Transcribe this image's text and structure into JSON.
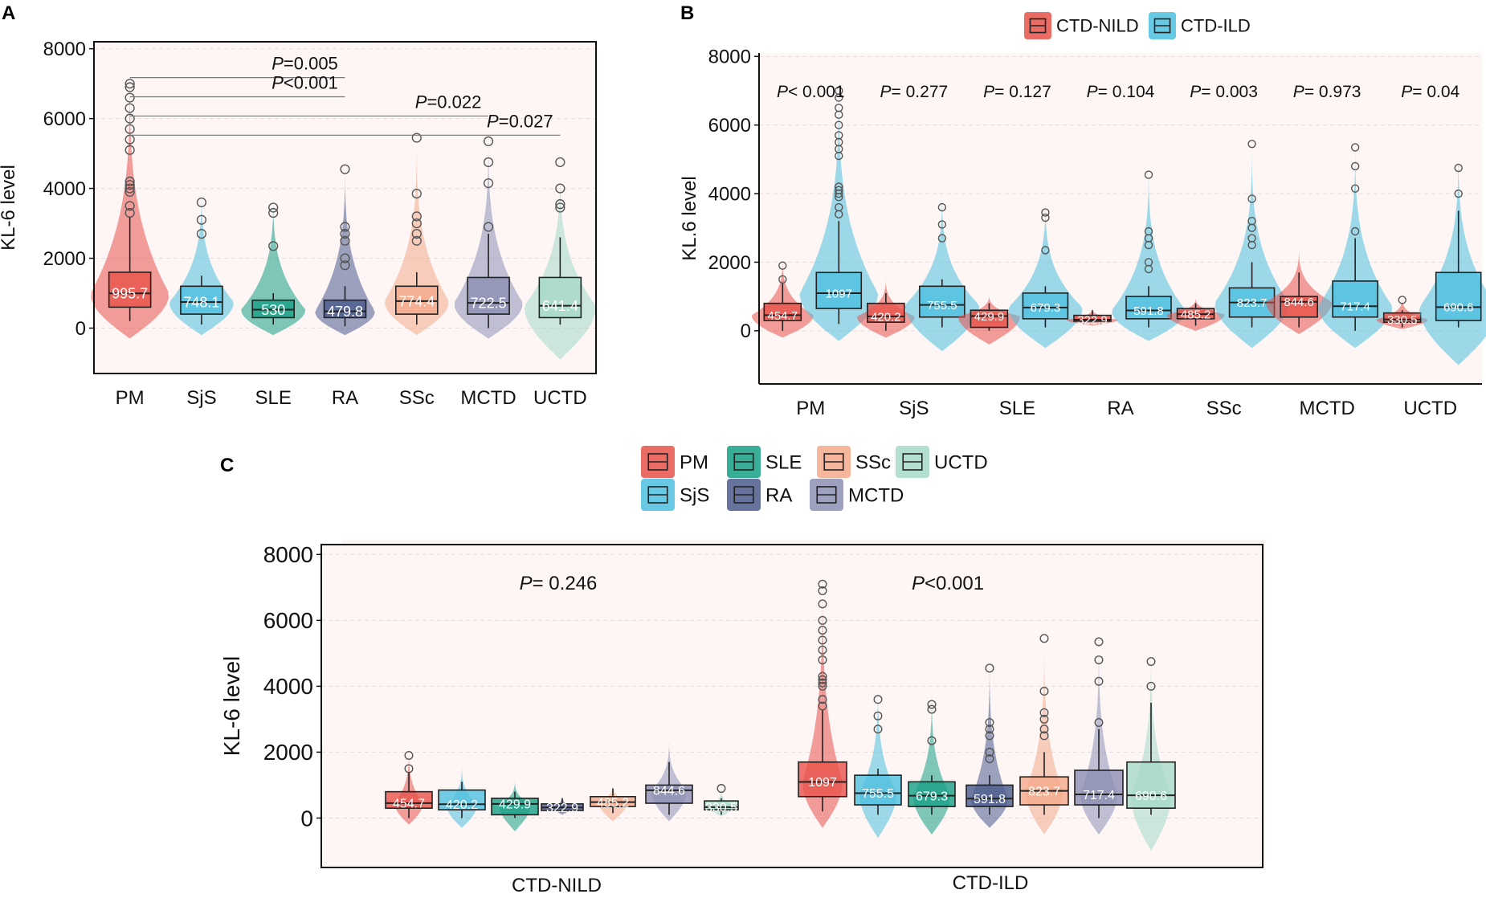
{
  "colors": {
    "PM": "#e8524a",
    "SjS": "#4ec0df",
    "SLE": "#16a085",
    "RA": "#4a5a8c",
    "SSc": "#f4a98a",
    "MCTD": "#8c8fb4",
    "UCTD": "#a6d9c8",
    "CTD-NILD": "#e8524a",
    "CTD-ILD": "#4ec0df"
  },
  "chart_data": [
    {
      "panel": "A",
      "type": "box",
      "ylabel": "KL-6 level",
      "ylim": [
        -1300,
        8200
      ],
      "yticks": [
        0,
        2000,
        4000,
        6000,
        8000
      ],
      "categories": [
        "PM",
        "SjS",
        "SLE",
        "RA",
        "SSc",
        "MCTD",
        "UCTD"
      ],
      "groups": [
        {
          "name": "PM",
          "color_key": "PM",
          "q1": 600,
          "median": 995.7,
          "q3": 1600,
          "whislo": 200,
          "whishi": 3200,
          "vmin": -300,
          "vmax": 7500,
          "vw": 0.55,
          "label": "995.7",
          "outliers": [
            7000,
            6900,
            6600,
            6300,
            6000,
            5700,
            5400,
            5100,
            4200,
            4100,
            4000,
            3900,
            3500,
            3300
          ]
        },
        {
          "name": "SjS",
          "color_key": "SjS",
          "q1": 400,
          "median": 748.1,
          "q3": 1200,
          "whislo": 100,
          "whishi": 1500,
          "vmin": -200,
          "vmax": 4200,
          "vw": 0.45,
          "label": "748.1",
          "outliers": [
            3600,
            3100,
            2700
          ]
        },
        {
          "name": "SLE",
          "color_key": "SLE",
          "q1": 300,
          "median": 530,
          "q3": 800,
          "whislo": 100,
          "whishi": 1000,
          "vmin": -200,
          "vmax": 4000,
          "vw": 0.45,
          "label": "530",
          "outliers": [
            3450,
            3300,
            2350
          ]
        },
        {
          "name": "RA",
          "color_key": "RA",
          "q1": 300,
          "median": 479.8,
          "q3": 800,
          "whislo": 50,
          "whishi": 1200,
          "vmin": -200,
          "vmax": 4900,
          "vw": 0.42,
          "label": "479.8",
          "outliers": [
            4550,
            2900,
            2700,
            2500,
            2000,
            1800
          ]
        },
        {
          "name": "SSc",
          "color_key": "SSc",
          "q1": 400,
          "median": 774.4,
          "q3": 1200,
          "whislo": 100,
          "whishi": 1600,
          "vmin": -200,
          "vmax": 5600,
          "vw": 0.45,
          "label": "774.4",
          "outliers": [
            5450,
            3850,
            3200,
            3000,
            2700,
            2500
          ]
        },
        {
          "name": "MCTD",
          "color_key": "MCTD",
          "q1": 400,
          "median": 722.5,
          "q3": 1450,
          "whislo": 0,
          "whishi": 2700,
          "vmin": -300,
          "vmax": 5700,
          "vw": 0.48,
          "label": "722.5",
          "outliers": [
            5350,
            4750,
            4150,
            2900
          ]
        },
        {
          "name": "UCTD",
          "color_key": "UCTD",
          "q1": 300,
          "median": 641.4,
          "q3": 1450,
          "whislo": 100,
          "whishi": 2600,
          "vmin": -900,
          "vmax": 4900,
          "vw": 0.5,
          "label": "641.4",
          "outliers": [
            4750,
            4000,
            3550,
            3450
          ]
        }
      ],
      "comparisons": [
        {
          "label": "=0.005",
          "from": "PM",
          "to": "RA",
          "y": 7450
        },
        {
          "label": "<0.001",
          "from": "PM",
          "to": "RA",
          "y": 6900
        },
        {
          "label": "=0.022",
          "from": "PM",
          "to": "MCTD",
          "y": 6350
        },
        {
          "label": "=0.027",
          "from": "PM",
          "to": "UCTD",
          "y": 5800
        }
      ]
    },
    {
      "panel": "B",
      "type": "box",
      "ylabel": "KL.6 level",
      "ylim": [
        -1550,
        8100
      ],
      "yticks": [
        0,
        2000,
        4000,
        6000,
        8000
      ],
      "legend": [
        "CTD-NILD",
        "CTD-ILD"
      ],
      "categories": [
        "PM",
        "SjS",
        "SLE",
        "RA",
        "SSc",
        "MCTD",
        "UCTD"
      ],
      "pvalues": [
        "< 0.001",
        "= 0.277",
        "= 0.127",
        "= 0.104",
        "= 0.003",
        "= 0.973",
        "= 0.04"
      ],
      "series": [
        {
          "name": "CTD-NILD",
          "color_key": "CTD-NILD",
          "groups": [
            {
              "q1": 300,
              "median": 454.7,
              "q3": 800,
              "whislo": 0,
              "whishi": 1400,
              "vmin": -200,
              "vmax": 2200,
              "vw": 0.3,
              "label": "454.7",
              "outliers": [
                1900,
                1500
              ]
            },
            {
              "q1": 250,
              "median": 420.2,
              "q3": 800,
              "whislo": 0,
              "whishi": 1100,
              "vmin": -200,
              "vmax": 1600,
              "vw": 0.28,
              "label": "420.2",
              "outliers": []
            },
            {
              "q1": 100,
              "median": 429.9,
              "q3": 600,
              "whislo": 0,
              "whishi": 800,
              "vmin": -400,
              "vmax": 1100,
              "vw": 0.3,
              "label": "429.9",
              "outliers": []
            },
            {
              "q1": 280,
              "median": 322.9,
              "q3": 450,
              "whislo": 200,
              "whishi": 600,
              "vmin": 150,
              "vmax": 700,
              "vw": 0.25,
              "label": "322.9",
              "outliers": []
            },
            {
              "q1": 350,
              "median": 485.2,
              "q3": 650,
              "whislo": 150,
              "whishi": 800,
              "vmin": 0,
              "vmax": 1000,
              "vw": 0.28,
              "label": "485.2",
              "outliers": []
            },
            {
              "q1": 400,
              "median": 844.6,
              "q3": 1000,
              "whislo": 100,
              "whishi": 1700,
              "vmin": -100,
              "vmax": 2500,
              "vw": 0.32,
              "label": "844.6",
              "outliers": []
            },
            {
              "q1": 250,
              "median": 330.5,
              "q3": 520,
              "whislo": 100,
              "whishi": 600,
              "vmin": 50,
              "vmax": 1000,
              "vw": 0.25,
              "label": "330.5",
              "outliers": [
                900
              ]
            }
          ]
        },
        {
          "name": "CTD-ILD",
          "color_key": "CTD-ILD",
          "groups": [
            {
              "q1": 650,
              "median": 1097,
              "q3": 1700,
              "whislo": 200,
              "whishi": 3200,
              "vmin": -300,
              "vmax": 7500,
              "vw": 0.38,
              "label": "1097",
              "outliers": [
                7000,
                6800,
                6500,
                6300,
                6000,
                5700,
                5500,
                5300,
                5100,
                4200,
                4100,
                4000,
                3900,
                3600,
                3400
              ]
            },
            {
              "q1": 400,
              "median": 755.5,
              "q3": 1300,
              "whislo": 100,
              "whishi": 1500,
              "vmin": -600,
              "vmax": 4200,
              "vw": 0.36,
              "label": "755.5",
              "outliers": [
                3600,
                3100,
                2700
              ]
            },
            {
              "q1": 350,
              "median": 679.3,
              "q3": 1100,
              "whislo": 100,
              "whishi": 1300,
              "vmin": -500,
              "vmax": 4000,
              "vw": 0.36,
              "label": "679.3",
              "outliers": [
                3450,
                3300,
                2350
              ]
            },
            {
              "q1": 350,
              "median": 591.8,
              "q3": 1000,
              "whislo": 100,
              "whishi": 1300,
              "vmin": -300,
              "vmax": 5000,
              "vw": 0.36,
              "label": "591.8",
              "outliers": [
                4550,
                2900,
                2700,
                2500,
                2000,
                1800
              ]
            },
            {
              "q1": 400,
              "median": 823.7,
              "q3": 1250,
              "whislo": 100,
              "whishi": 2000,
              "vmin": -500,
              "vmax": 5600,
              "vw": 0.36,
              "label": "823.7",
              "outliers": [
                5450,
                3850,
                3200,
                3000,
                2700,
                2500
              ]
            },
            {
              "q1": 400,
              "median": 717.4,
              "q3": 1450,
              "whislo": 0,
              "whishi": 2700,
              "vmin": -500,
              "vmax": 5700,
              "vw": 0.36,
              "label": "717.4",
              "outliers": [
                5350,
                4800,
                4150,
                2900
              ]
            },
            {
              "q1": 300,
              "median": 690.6,
              "q3": 1700,
              "whislo": 100,
              "whishi": 3500,
              "vmin": -1000,
              "vmax": 5500,
              "vw": 0.38,
              "label": "690.6",
              "outliers": [
                4750,
                4000
              ]
            }
          ]
        }
      ]
    },
    {
      "panel": "C",
      "type": "box",
      "ylabel": "KL-6 level",
      "ylim": [
        -1500,
        8300
      ],
      "yticks": [
        0,
        2000,
        4000,
        6000,
        8000
      ],
      "legend": [
        "PM",
        "SLE",
        "SSc",
        "UCTD",
        "SjS",
        "RA",
        "MCTD"
      ],
      "categories": [
        "CTD-NILD",
        "CTD-ILD"
      ],
      "pvalues": [
        "= 0.246",
        "<0.001"
      ],
      "subgroups": [
        "PM",
        "SjS",
        "SLE",
        "RA",
        "SSc",
        "MCTD",
        "UCTD"
      ],
      "groups": [
        [
          {
            "q1": 300,
            "median": 454.7,
            "q3": 800,
            "whislo": 0,
            "whishi": 1400,
            "vmin": -200,
            "vmax": 2200,
            "vw": 0.55,
            "label": "454.7",
            "outliers": [
              1900,
              1500
            ]
          },
          {
            "q1": 250,
            "median": 420.2,
            "q3": 850,
            "whislo": 0,
            "whishi": 1100,
            "vmin": -300,
            "vmax": 1700,
            "vw": 0.6,
            "label": "420.2",
            "outliers": []
          },
          {
            "q1": 100,
            "median": 429.9,
            "q3": 600,
            "whislo": 0,
            "whishi": 800,
            "vmin": -400,
            "vmax": 1200,
            "vw": 0.62,
            "label": "429.9",
            "outliers": []
          },
          {
            "q1": 230,
            "median": 322.9,
            "q3": 430,
            "whislo": 180,
            "whishi": 600,
            "vmin": 100,
            "vmax": 750,
            "vw": 0.35,
            "label": "322.9",
            "outliers": []
          },
          {
            "q1": 350,
            "median": 485.2,
            "q3": 650,
            "whislo": 150,
            "whishi": 900,
            "vmin": -100,
            "vmax": 1100,
            "vw": 0.55,
            "label": "485.2",
            "outliers": []
          },
          {
            "q1": 450,
            "median": 844.6,
            "q3": 1000,
            "whislo": 100,
            "whishi": 1700,
            "vmin": -100,
            "vmax": 2500,
            "vw": 0.7,
            "label": "844.6",
            "outliers": []
          },
          {
            "q1": 250,
            "median": 330.5,
            "q3": 520,
            "whislo": 100,
            "whishi": 600,
            "vmin": 50,
            "vmax": 1000,
            "vw": 0.45,
            "label": "330.5",
            "outliers": [
              900
            ]
          }
        ],
        [
          {
            "q1": 650,
            "median": 1097,
            "q3": 1700,
            "whislo": 200,
            "whishi": 3300,
            "vmin": -300,
            "vmax": 7500,
            "vw": 0.78,
            "label": "1097",
            "outliers": [
              7100,
              6900,
              6500,
              6000,
              5700,
              5400,
              5100,
              4800,
              4300,
              4200,
              4100,
              4000,
              3600,
              3400
            ]
          },
          {
            "q1": 400,
            "median": 755.5,
            "q3": 1300,
            "whislo": 100,
            "whishi": 1500,
            "vmin": -600,
            "vmax": 4300,
            "vw": 0.72,
            "label": "755.5",
            "outliers": [
              3600,
              3100,
              2700
            ]
          },
          {
            "q1": 350,
            "median": 679.3,
            "q3": 1100,
            "whislo": 100,
            "whishi": 1300,
            "vmin": -500,
            "vmax": 4000,
            "vw": 0.72,
            "label": "679.3",
            "outliers": [
              3450,
              3300,
              2350
            ]
          },
          {
            "q1": 350,
            "median": 591.8,
            "q3": 1000,
            "whislo": 100,
            "whishi": 1300,
            "vmin": -300,
            "vmax": 5000,
            "vw": 0.72,
            "label": "591.8",
            "outliers": [
              4550,
              2900,
              2700,
              2500,
              2000,
              1800
            ]
          },
          {
            "q1": 400,
            "median": 823.7,
            "q3": 1250,
            "whislo": 100,
            "whishi": 2000,
            "vmin": -500,
            "vmax": 5600,
            "vw": 0.72,
            "label": "823.7",
            "outliers": [
              5450,
              3850,
              3200,
              3000,
              2700,
              2500
            ]
          },
          {
            "q1": 400,
            "median": 717.4,
            "q3": 1450,
            "whislo": 0,
            "whishi": 2700,
            "vmin": -500,
            "vmax": 5700,
            "vw": 0.72,
            "label": "717.4",
            "outliers": [
              5350,
              4800,
              4150,
              2900
            ]
          },
          {
            "q1": 300,
            "median": 690.6,
            "q3": 1700,
            "whislo": 100,
            "whishi": 3500,
            "vmin": -1000,
            "vmax": 5500,
            "vw": 0.78,
            "label": "690.6",
            "outliers": [
              4750,
              4000
            ]
          }
        ]
      ]
    }
  ],
  "panel_labels": {
    "A": "A",
    "B": "B",
    "C": "C"
  },
  "p_symbol": "P"
}
